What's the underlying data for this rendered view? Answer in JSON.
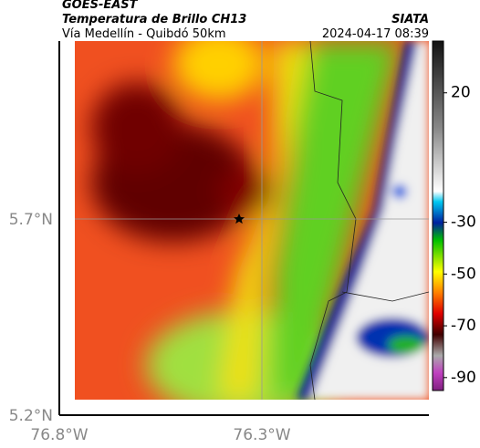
{
  "header": {
    "source": "GOES-EAST",
    "title": "Temperatura de Brillo CH13",
    "org": "SIATA",
    "route": "Vía Medellín - Quibdó 50km",
    "datetime": "2024-04-17 08:39"
  },
  "axes": {
    "lat_labels": [
      "5.7°N",
      "5.2°N"
    ],
    "lon_labels": [
      "76.8°W",
      "76.3°W"
    ]
  },
  "colorbar": {
    "lim": [
      -95,
      40
    ],
    "ticks": [
      20,
      -30,
      -50,
      -70,
      -90
    ]
  }
}
